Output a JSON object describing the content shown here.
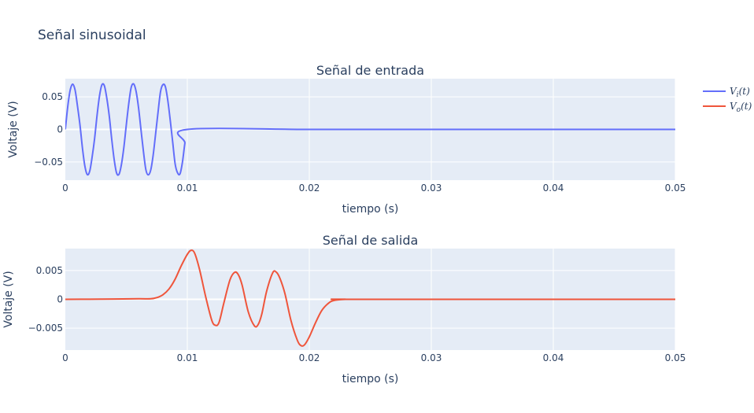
{
  "figure": {
    "title": "Señal sinusoidal"
  },
  "colors": {
    "input": "#636efa",
    "output": "#ef553b",
    "plot_bg": "#e5ecf6",
    "grid": "#ffffff",
    "text": "#2a3f5f"
  },
  "legend": {
    "position": "top-right",
    "items": [
      {
        "label": "Vi(t)",
        "base": "V",
        "sub": "i",
        "tail": "(t)",
        "color": "#636efa"
      },
      {
        "label": "Vo(t)",
        "base": "V",
        "sub": "o",
        "tail": "(t)",
        "color": "#ef553b"
      }
    ]
  },
  "chart_data": [
    {
      "type": "line",
      "title": "Señal de entrada",
      "xlabel": "tiempo (s)",
      "ylabel": "Voltaje (V)",
      "xlim": [
        0,
        0.05
      ],
      "ylim": [
        -0.078,
        0.078
      ],
      "xticks": [
        0,
        0.01,
        0.02,
        0.03,
        0.04,
        0.05
      ],
      "xtick_labels": [
        "0",
        "0.01",
        "0.02",
        "0.03",
        "0.04",
        "0.05"
      ],
      "yticks": [
        -0.05,
        0,
        0.05
      ],
      "ytick_labels": [
        "−0.05",
        "0",
        "0.05"
      ],
      "grid": true,
      "series": [
        {
          "name": "Vi(t)",
          "color": "#636efa",
          "x": [
            0,
            0.0002,
            0.0004,
            0.0006,
            0.0008,
            0.001,
            0.0012,
            0.0014,
            0.0016,
            0.0018,
            0.002,
            0.0022,
            0.0024,
            0.0026,
            0.0028,
            0.003,
            0.0032,
            0.0034,
            0.0036,
            0.0038,
            0.004,
            0.0042,
            0.0044,
            0.0046,
            0.0048,
            0.005,
            0.0052,
            0.0054,
            0.0056,
            0.0058,
            0.006,
            0.0062,
            0.0064,
            0.0066,
            0.0068,
            0.007,
            0.0072,
            0.0074,
            0.0076,
            0.0078,
            0.008,
            0.0082,
            0.0084,
            0.0086,
            0.0088,
            0.009,
            0.0092,
            0.0094,
            0.0096,
            0.0098,
            0.01,
            0.02,
            0.03,
            0.04,
            0.05
          ],
          "y": [
            0,
            0.0354,
            0.0605,
            0.0696,
            0.0605,
            0.0354,
            0.0069,
            -0.0282,
            -0.0562,
            -0.0694,
            -0.0641,
            -0.042,
            -0.014,
            0.0215,
            0.0513,
            0.0685,
            0.0671,
            0.048,
            0.0208,
            -0.0145,
            -0.0458,
            -0.0669,
            -0.069,
            -0.0537,
            -0.0274,
            0.0073,
            0.0398,
            0.0645,
            0.0699,
            0.0585,
            0.0336,
            -0.0002,
            -0.0334,
            -0.0617,
            -0.0699,
            -0.0625,
            -0.0396,
            -0.0069,
            0.0265,
            0.0577,
            0.0689,
            0.0657,
            0.0446,
            0.014,
            -0.0194,
            -0.0529,
            -0.0668,
            -0.0683,
            -0.0504,
            -0.0212,
            0,
            0,
            0,
            0,
            0
          ]
        }
      ]
    },
    {
      "type": "line",
      "title": "Señal de salida",
      "xlabel": "tiempo (s)",
      "ylabel": "Voltaje (V)",
      "xlim": [
        0,
        0.05
      ],
      "ylim": [
        -0.0088,
        0.0088
      ],
      "xticks": [
        0,
        0.01,
        0.02,
        0.03,
        0.04,
        0.05
      ],
      "xtick_labels": [
        "0",
        "0.01",
        "0.02",
        "0.03",
        "0.04",
        "0.05"
      ],
      "yticks": [
        -0.005,
        0,
        0.005
      ],
      "ytick_labels": [
        "−0.005",
        "0",
        "0.005"
      ],
      "grid": true,
      "series": [
        {
          "name": "Vo(t)",
          "color": "#ef553b",
          "x": [
            0,
            0.002,
            0.004,
            0.006,
            0.007,
            0.0075,
            0.008,
            0.0085,
            0.009,
            0.0095,
            0.01,
            0.0103,
            0.0106,
            0.011,
            0.0115,
            0.012,
            0.0123,
            0.0126,
            0.013,
            0.0135,
            0.0139,
            0.0142,
            0.0145,
            0.015,
            0.0155,
            0.0158,
            0.0161,
            0.0165,
            0.017,
            0.0173,
            0.0176,
            0.018,
            0.0185,
            0.019,
            0.0193,
            0.0196,
            0.02,
            0.0205,
            0.021,
            0.0215,
            0.022,
            0.023,
            0.024,
            0.05
          ],
          "y": [
            0,
            2e-05,
            5e-05,
            0.0001,
            0.0001,
            0.0003,
            0.0008,
            0.0018,
            0.0035,
            0.0058,
            0.0078,
            0.0085,
            0.008,
            0.0052,
            0.0005,
            -0.0036,
            -0.0045,
            -0.004,
            -0.0006,
            0.0034,
            0.0047,
            0.0042,
            0.0024,
            -0.0022,
            -0.0046,
            -0.0044,
            -0.0026,
            0.0014,
            0.0046,
            0.0047,
            0.0036,
            0.001,
            -0.0037,
            -0.007,
            -0.008,
            -0.0079,
            -0.0065,
            -0.0041,
            -0.002,
            -0.0008,
            -0.0002,
            0,
            0,
            0
          ]
        }
      ]
    }
  ]
}
